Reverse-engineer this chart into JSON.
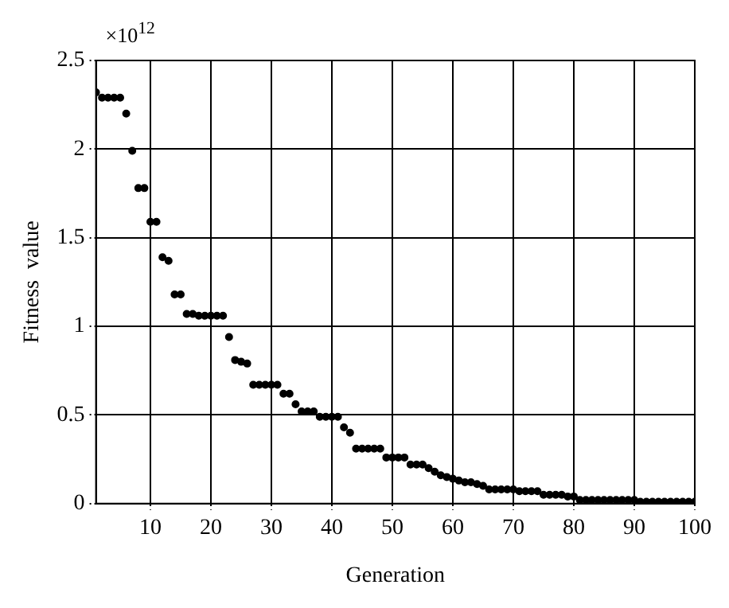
{
  "chart_data": {
    "type": "scatter",
    "xlabel": "Generation",
    "ylabel": "Fitness  value",
    "annotations": [
      "×10$^{12}$"
    ],
    "x": [
      1,
      2,
      3,
      4,
      5,
      6,
      7,
      8,
      9,
      10,
      11,
      12,
      13,
      14,
      15,
      16,
      17,
      18,
      19,
      20,
      21,
      22,
      23,
      24,
      25,
      26,
      27,
      28,
      29,
      30,
      31,
      32,
      33,
      34,
      35,
      36,
      37,
      38,
      39,
      40,
      41,
      42,
      43,
      44,
      45,
      46,
      47,
      48,
      49,
      50,
      51,
      52,
      53,
      54,
      55,
      56,
      57,
      58,
      59,
      60,
      61,
      62,
      63,
      64,
      65,
      66,
      67,
      68,
      69,
      70,
      71,
      72,
      73,
      74,
      75,
      76,
      77,
      78,
      79,
      80,
      81,
      82,
      83,
      84,
      85,
      86,
      87,
      88,
      89,
      90,
      91,
      92,
      93,
      94,
      95,
      96,
      97,
      98,
      99,
      100
    ],
    "series": [
      {
        "color": "#000000",
        "values": [
          2.32,
          2.29,
          2.29,
          2.29,
          2.29,
          2.2,
          1.99,
          1.78,
          1.78,
          1.59,
          1.59,
          1.39,
          1.37,
          1.18,
          1.18,
          1.07,
          1.07,
          1.06,
          1.06,
          1.06,
          1.06,
          1.06,
          0.94,
          0.81,
          0.8,
          0.79,
          0.67,
          0.67,
          0.67,
          0.67,
          0.67,
          0.62,
          0.62,
          0.56,
          0.52,
          0.52,
          0.52,
          0.49,
          0.49,
          0.49,
          0.49,
          0.43,
          0.4,
          0.31,
          0.31,
          0.31,
          0.31,
          0.31,
          0.26,
          0.26,
          0.26,
          0.26,
          0.22,
          0.22,
          0.22,
          0.2,
          0.18,
          0.16,
          0.15,
          0.14,
          0.13,
          0.12,
          0.12,
          0.11,
          0.1,
          0.08,
          0.08,
          0.08,
          0.08,
          0.08,
          0.07,
          0.07,
          0.07,
          0.07,
          0.05,
          0.05,
          0.05,
          0.05,
          0.04,
          0.04,
          0.02,
          0.02,
          0.02,
          0.02,
          0.02,
          0.02,
          0.02,
          0.02,
          0.02,
          0.02,
          0.01,
          0.01,
          0.01,
          0.01,
          0.01,
          0.01,
          0.01,
          0.01,
          0.01,
          0.01
        ]
      }
    ],
    "xlim": [
      1,
      100
    ],
    "xticks": [
      10,
      20,
      30,
      40,
      50,
      60,
      70,
      80,
      90,
      100
    ],
    "ylim": [
      0,
      2.5
    ],
    "yticks": [
      0,
      0.5,
      1,
      1.5,
      2,
      2.5
    ],
    "grid": true,
    "marker": "circle",
    "line_style": "dotted",
    "legend": false
  }
}
